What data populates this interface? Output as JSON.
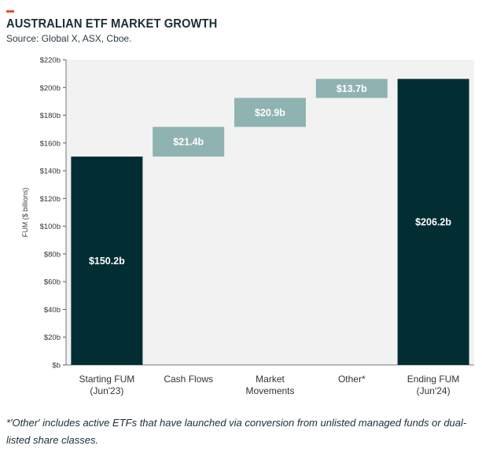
{
  "header": {
    "title": "AUSTRALIAN ETF MARKET GROWTH",
    "source": "Source: Global X, ASX, Cboe."
  },
  "footnote": "*'Other' includes active ETFs that have launched via conversion from unlisted managed funds or dual-listed share classes.",
  "colors": {
    "dark_bar": "#022e33",
    "light_bar": "#8fb3b0",
    "plot_bg": "#f2f2f2",
    "accent": "#e8532a",
    "text": "#1c2e37"
  },
  "chart_data": {
    "type": "bar",
    "subtype": "waterfall",
    "categories": [
      "Starting FUM\n(Jun'23)",
      "Cash Flows",
      "Market\nMovements",
      "Other*",
      "Ending FUM\n(Jun'24)"
    ],
    "values": [
      150.2,
      21.4,
      20.9,
      13.7,
      206.2
    ],
    "bar_kinds": [
      "total",
      "delta",
      "delta",
      "delta",
      "total"
    ],
    "data_labels": [
      "$150.2b",
      "$21.4b",
      "$20.9b",
      "$13.7b",
      "$206.2b"
    ],
    "ylabel": "FUM ($ billions)",
    "ylim": [
      0,
      220
    ],
    "yticks": [
      0,
      20,
      40,
      60,
      80,
      100,
      120,
      140,
      160,
      180,
      200,
      220
    ],
    "ytick_labels": [
      "$b",
      "$20b",
      "$40b",
      "$60b",
      "$80b",
      "$100b",
      "$120b",
      "$140b",
      "$160b",
      "$180b",
      "$200b",
      "$220b"
    ],
    "grid": false,
    "legend": "none"
  }
}
